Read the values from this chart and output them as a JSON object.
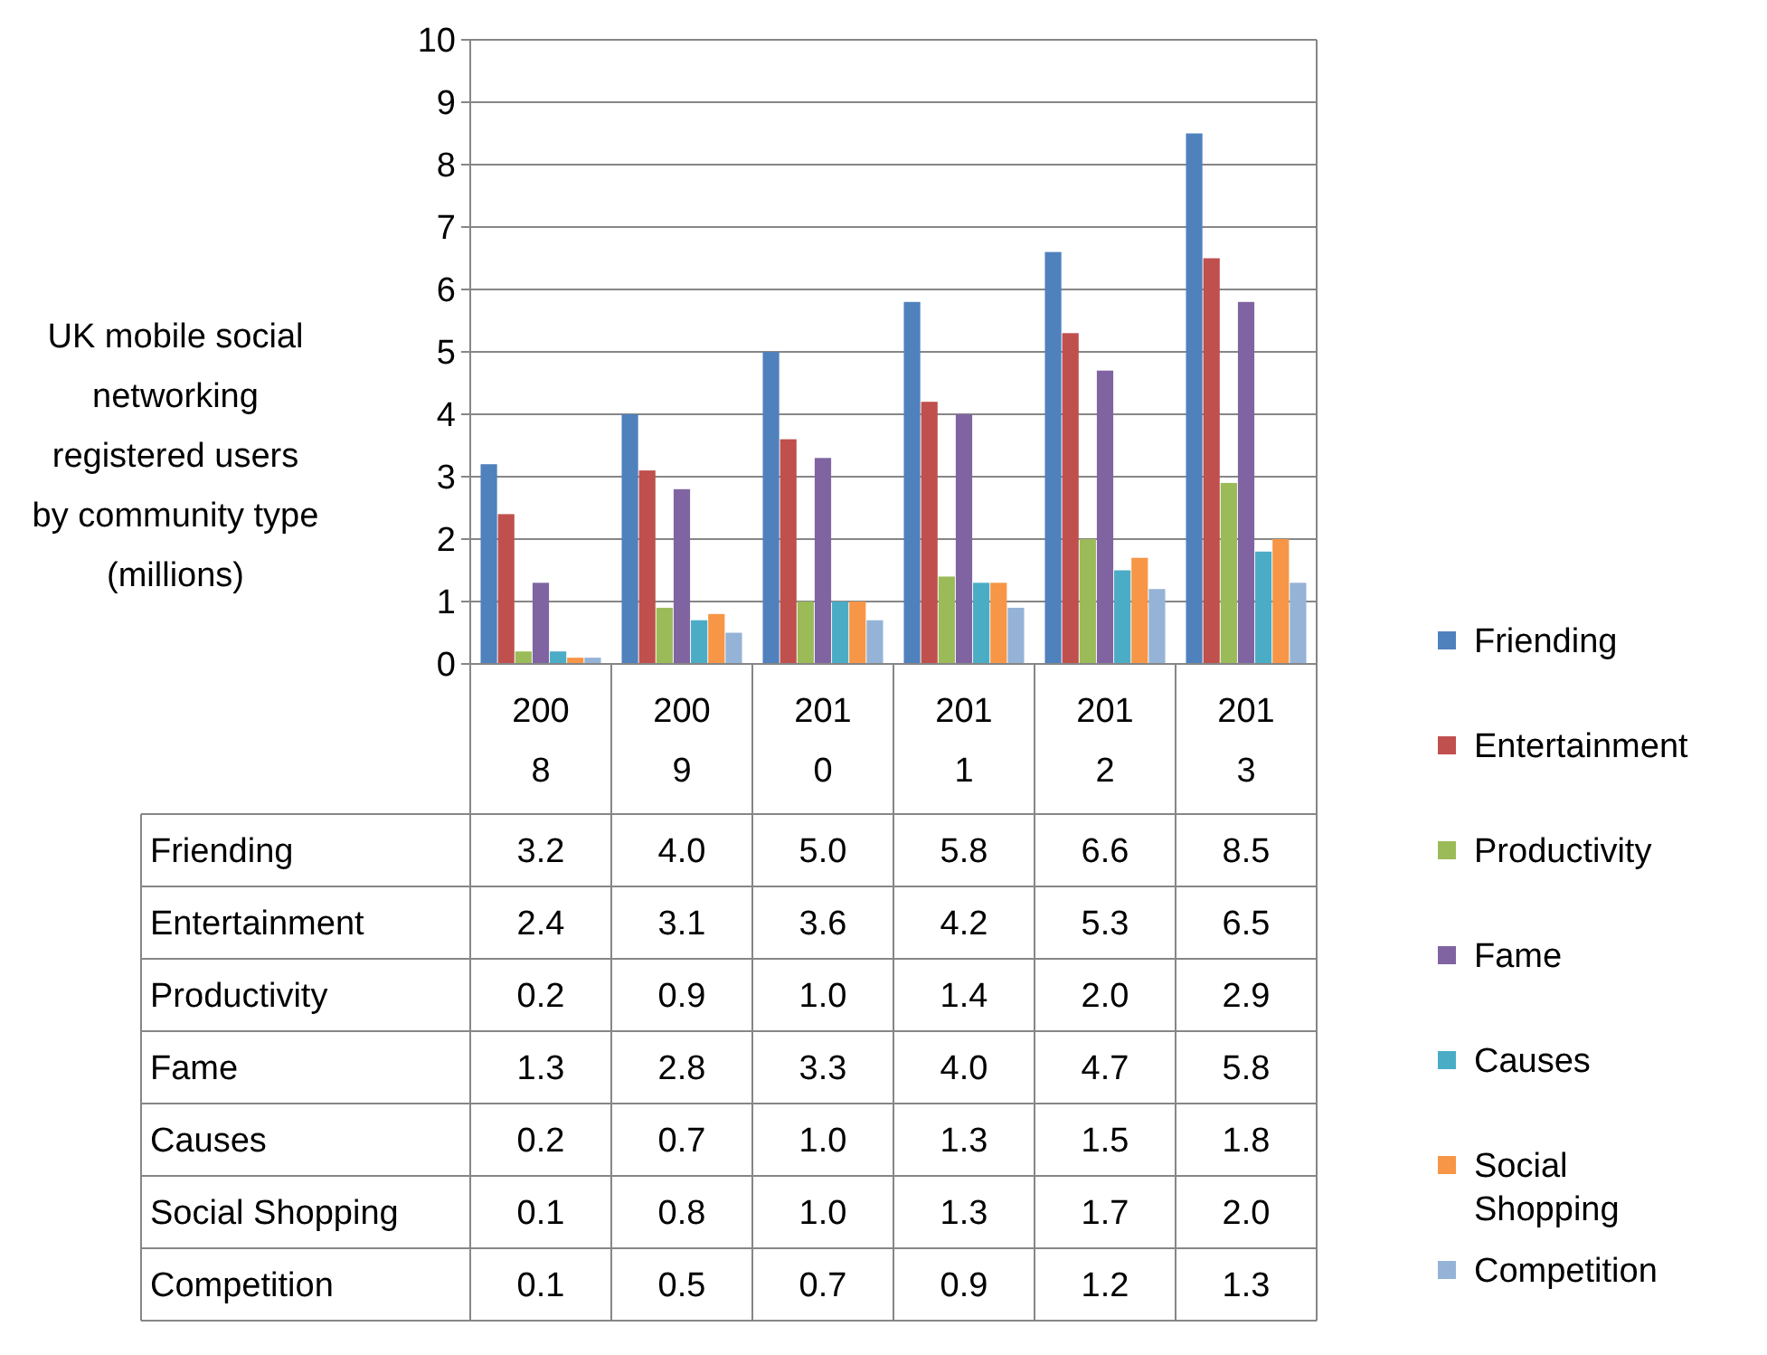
{
  "chart_data": {
    "type": "bar",
    "ylabel": "UK mobile social networking registered users by community type (millions)",
    "categories": [
      "2008",
      "2009",
      "2010",
      "2011",
      "2012",
      "2013"
    ],
    "ylim": [
      0,
      10
    ],
    "yticks": [
      0,
      1,
      2,
      3,
      4,
      5,
      6,
      7,
      8,
      9,
      10
    ],
    "grid": "y",
    "legend": "right",
    "series": [
      {
        "name": "Friending",
        "color": "#4f81bd",
        "values": [
          3.2,
          4.0,
          5.0,
          5.8,
          6.6,
          8.5
        ],
        "value_labels": [
          "3.2",
          "4.0",
          "5.0",
          "5.8",
          "6.6",
          "8.5"
        ]
      },
      {
        "name": "Entertainment",
        "color": "#c0504d",
        "values": [
          2.4,
          3.1,
          3.6,
          4.2,
          5.3,
          6.5
        ],
        "value_labels": [
          "2.4",
          "3.1",
          "3.6",
          "4.2",
          "5.3",
          "6.5"
        ]
      },
      {
        "name": "Productivity",
        "color": "#9bbb59",
        "values": [
          0.2,
          0.9,
          1.0,
          1.4,
          2.0,
          2.9
        ],
        "value_labels": [
          "0.2",
          "0.9",
          "1.0",
          "1.4",
          "2.0",
          "2.9"
        ]
      },
      {
        "name": "Fame",
        "color": "#8064a2",
        "values": [
          1.3,
          2.8,
          3.3,
          4.0,
          4.7,
          5.8
        ],
        "value_labels": [
          "1.3",
          "2.8",
          "3.3",
          "4.0",
          "4.7",
          "5.8"
        ]
      },
      {
        "name": "Causes",
        "color": "#4bacc6",
        "values": [
          0.2,
          0.7,
          1.0,
          1.3,
          1.5,
          1.8
        ],
        "value_labels": [
          "0.2",
          "0.7",
          "1.0",
          "1.3",
          "1.5",
          "1.8"
        ]
      },
      {
        "name": "Social Shopping",
        "color": "#f79646",
        "values": [
          0.1,
          0.8,
          1.0,
          1.3,
          1.7,
          2.0
        ],
        "value_labels": [
          "0.1",
          "0.8",
          "1.0",
          "1.3",
          "1.7",
          "2.0"
        ]
      },
      {
        "name": "Competition",
        "color": "#95b3d7",
        "values": [
          0.1,
          0.5,
          0.7,
          0.9,
          1.2,
          1.3
        ],
        "value_labels": [
          "0.1",
          "0.5",
          "0.7",
          "0.9",
          "1.2",
          "1.3"
        ]
      }
    ]
  }
}
